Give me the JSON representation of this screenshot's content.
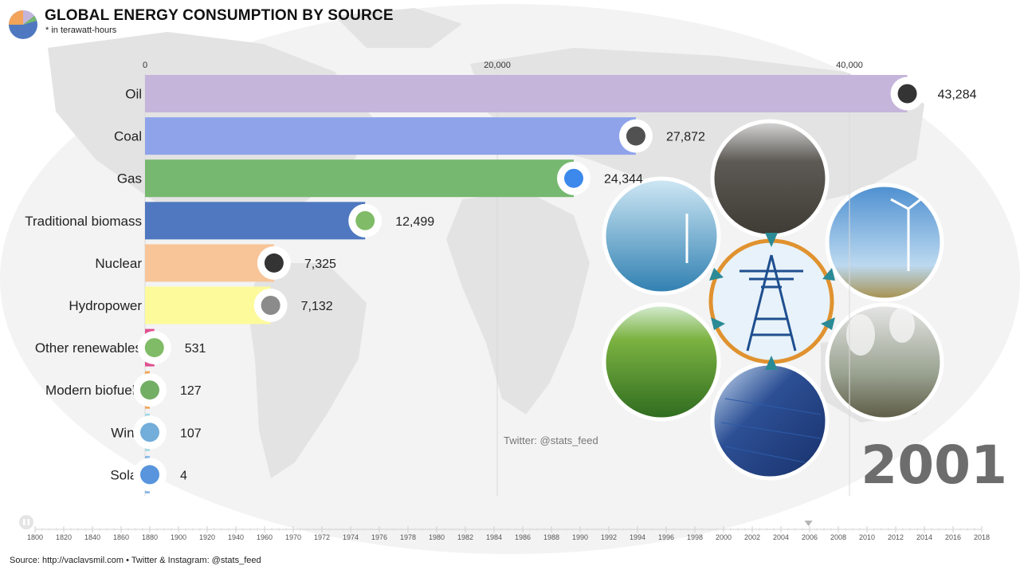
{
  "header": {
    "title": "GLOBAL ENERGY CONSUMPTION BY SOURCE",
    "subtitle": "* in terawatt-hours"
  },
  "chart_data": {
    "type": "bar",
    "orientation": "horizontal",
    "title": "GLOBAL ENERGY CONSUMPTION BY SOURCE",
    "subtitle": "* in terawatt-hours",
    "xlim": [
      0,
      44000
    ],
    "xticks": [
      0,
      20000,
      40000
    ],
    "xtick_labels": [
      "0",
      "20,000",
      "40,000"
    ],
    "grid": true,
    "categories": [
      "Oil",
      "Coal",
      "Gas",
      "Traditional biomass",
      "Nuclear",
      "Hydropower",
      "Other renewables",
      "Modern biofuels",
      "Wind",
      "Solar"
    ],
    "values": [
      43284,
      27872,
      24344,
      12499,
      7325,
      7132,
      531,
      127,
      107,
      4
    ],
    "value_labels": [
      "43,284",
      "27,872",
      "24,344",
      "12,499",
      "7,325",
      "7,132",
      "531",
      "127",
      "107",
      "4"
    ],
    "colors": [
      "#c5b5db",
      "#8fa3ea",
      "#76b86f",
      "#4f78c0",
      "#f8c598",
      "#fdfa9c",
      "#e0508f",
      "#f2a45a",
      "#a5d8e6",
      "#8bb8e6"
    ],
    "icons": [
      "oil-drop-icon",
      "coal-icon",
      "gas-flame-icon",
      "biomass-icon",
      "nuclear-icon",
      "hydropower-icon",
      "renewables-icon",
      "biofuel-icon",
      "wind-icon",
      "solar-icon"
    ]
  },
  "year": "2001",
  "credit": "Twitter: @stats_feed",
  "source": "Source: http://vaclavsmil.com • Twitter & Instagram: @stats_feed",
  "timeline": {
    "labels": [
      "1800",
      "1820",
      "1840",
      "1860",
      "1880",
      "1900",
      "1920",
      "1940",
      "1960",
      "1970",
      "1972",
      "1974",
      "1976",
      "1978",
      "1980",
      "1982",
      "1984",
      "1986",
      "1988",
      "1990",
      "1992",
      "1994",
      "1996",
      "1998",
      "2000",
      "2002",
      "2004",
      "2006",
      "2008",
      "2010",
      "2012",
      "2014",
      "2016",
      "2018"
    ],
    "progress": 0.817
  }
}
